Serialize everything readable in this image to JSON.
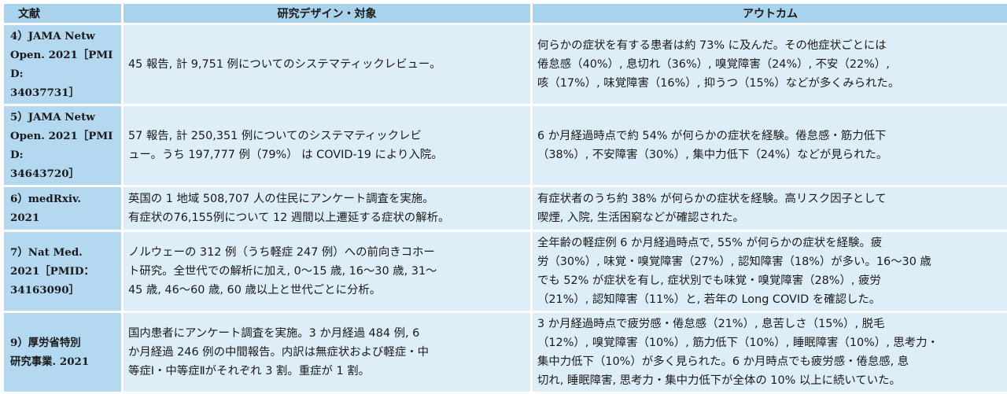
{
  "headers": {
    "reference": "文献",
    "design": "研究デザイン・対象",
    "outcome": "アウトカム"
  },
  "rows": [
    {
      "reference": "4）JAMA Netw\nOpen. 2021［PMID:\n34037731］",
      "design": "45 報告, 計 9,751 例についてのシステマティックレビュー。",
      "outcome": "何らかの症状を有する患者は約 73% に及んだ。その他症状ごとには\n倦怠感（40%）, 息切れ（36%）, 嗅覚障害（24%）, 不安（22%）,\n咳（17%）, 味覚障害（16%）, 抑うつ（15%）などが多くみられた。"
    },
    {
      "reference": "5）JAMA Netw\nOpen. 2021［PMID:\n34643720］",
      "design": "57 報告, 計 250,351 例についてのシステマティックレビ\nュー。うち 197,777 例（79%） は COVID-19 により入院。",
      "outcome": "6 か月経過時点で約 54% が何らかの症状を経験。倦怠感・筋力低下\n（38%）, 不安障害（30%）, 集中力低下（24%）などが見られた。"
    },
    {
      "reference": "6）medRxiv.\n2021",
      "design": "英国の 1 地域 508,707 人の住民にアンケート調査を実施。\n有症状の76,155例について 12 週間以上遷延する症状の解析。",
      "outcome": "有症状者のうち約 38% が何らかの症状を経験。高リスク因子として\n喫煙, 入院, 生活困窮などが確認された。"
    },
    {
      "reference": "7）Nat Med.\n2021［PMID：\n34163090］",
      "design": "ノルウェーの 312 例（うち軽症 247 例）への前向きコホー\nト研究。全世代での解析に加え, 0〜15 歳, 16〜30 歳, 31〜\n45 歳, 46〜60 歳, 60 歳以上と世代ごとに分析。",
      "outcome": "全年齢の軽症例 6 か月経過時点で, 55% が何らかの症状を経験。疲\n労（30%）, 味覚・嗅覚障害（27%）, 認知障害（18%）が多い。16〜30 歳\nでも 52% が症状を有し, 症状別でも味覚・嗅覚障害（28%）, 疲労\n（21%）, 認知障害（11%）と, 若年の Long COVID を確認した。"
    },
    {
      "reference": "9）厚労省特別\n研究事業. 2021",
      "design": "国内患者にアンケート調査を実施。3 か月経過 484 例, 6\nか月経過 246 例の中間報告。内訳は無症状および軽症・中\n等症Ⅰ・中等症Ⅱがそれぞれ 3 割。重症が 1 割。",
      "outcome": "3 か月経過時点で疲労感・倦怠感（21%）, 息苦しさ（15%）, 脱毛\n（12%）, 嗅覚障害（10%）, 筋力低下（10%）, 睡眠障害（10%）, 思考力・\n集中力低下（10%）が多く見られた。6 か月時点でも疲労感・倦怠感, 息\n切れ, 睡眠障害, 思考力・集中力低下が全体の 10% 以上に続いていた。"
    }
  ]
}
